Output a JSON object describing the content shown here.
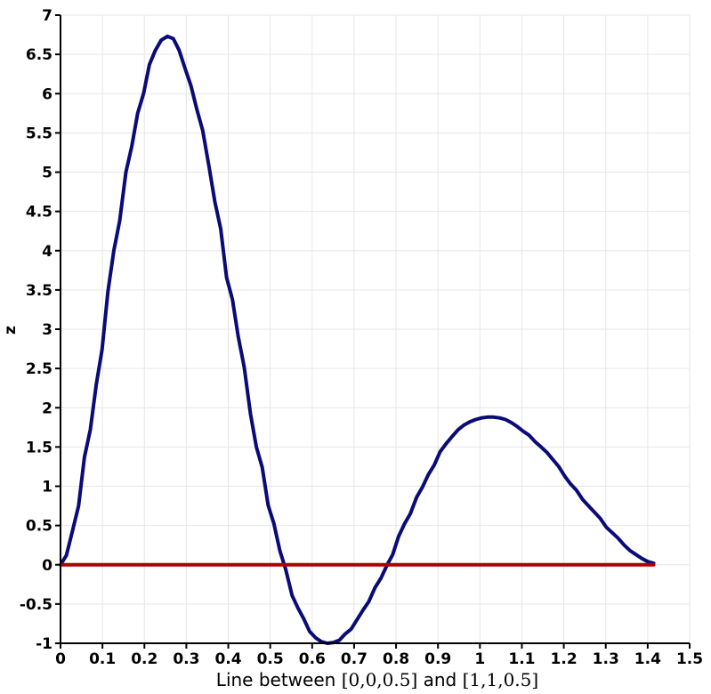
{
  "chart_data": {
    "type": "line",
    "xlabel_prefix": "Line between ",
    "xlabel_point_a": "[0,0,0.5]",
    "xlabel_middle": " and ",
    "xlabel_point_b": "[1,1,0.5]",
    "ylabel": "z",
    "xlim": [
      0,
      1.5
    ],
    "ylim": [
      -1,
      7
    ],
    "xticks": [
      0,
      0.1,
      0.2,
      0.3,
      0.4,
      0.5,
      0.6,
      0.7,
      0.8,
      0.9,
      1,
      1.1,
      1.2,
      1.3,
      1.4,
      1.5
    ],
    "xtick_labels": [
      "0",
      "0.1",
      "0.2",
      "0.3",
      "0.4",
      "0.5",
      "0.6",
      "0.7",
      "0.8",
      "0.9",
      "1",
      "1.1",
      "1.2",
      "1.3",
      "1.4",
      "1.5"
    ],
    "yticks": [
      -1,
      -0.5,
      0,
      0.5,
      1,
      1.5,
      2,
      2.5,
      3,
      3.5,
      4,
      4.5,
      5,
      5.5,
      6,
      6.5,
      7
    ],
    "ytick_labels": [
      "-1",
      "-0.5",
      "0",
      "0.5",
      "1",
      "1.5",
      "2",
      "2.5",
      "3",
      "3.5",
      "4",
      "4.5",
      "5",
      "5.5",
      "6",
      "6.5",
      "7"
    ],
    "grid": true,
    "series": [
      {
        "color": "#0a0a78",
        "x": [
          0,
          0.014,
          0.028,
          0.043,
          0.057,
          0.071,
          0.085,
          0.099,
          0.113,
          0.127,
          0.141,
          0.156,
          0.17,
          0.184,
          0.198,
          0.212,
          0.226,
          0.24,
          0.255,
          0.269,
          0.283,
          0.297,
          0.311,
          0.325,
          0.339,
          0.354,
          0.368,
          0.382,
          0.396,
          0.41,
          0.424,
          0.438,
          0.453,
          0.467,
          0.481,
          0.495,
          0.509,
          0.523,
          0.537,
          0.552,
          0.566,
          0.58,
          0.594,
          0.608,
          0.622,
          0.636,
          0.651,
          0.665,
          0.679,
          0.693,
          0.707,
          0.721,
          0.735,
          0.75,
          0.764,
          0.778,
          0.792,
          0.806,
          0.82,
          0.834,
          0.849,
          0.863,
          0.877,
          0.891,
          0.905,
          0.919,
          0.933,
          0.948,
          0.962,
          0.976,
          0.99,
          1.004,
          1.018,
          1.032,
          1.047,
          1.061,
          1.075,
          1.089,
          1.103,
          1.117,
          1.131,
          1.146,
          1.16,
          1.174,
          1.188,
          1.202,
          1.216,
          1.23,
          1.245,
          1.259,
          1.273,
          1.287,
          1.301,
          1.315,
          1.329,
          1.344,
          1.358,
          1.372,
          1.386,
          1.4,
          1.414
        ],
        "y": [
          0,
          0.12,
          0.42,
          0.75,
          1.37,
          1.72,
          2.29,
          2.74,
          3.48,
          4.0,
          4.38,
          5.0,
          5.33,
          5.75,
          6.0,
          6.37,
          6.55,
          6.68,
          6.73,
          6.7,
          6.55,
          6.32,
          6.1,
          5.8,
          5.53,
          5.07,
          4.62,
          4.28,
          3.66,
          3.38,
          2.9,
          2.52,
          1.92,
          1.5,
          1.24,
          0.76,
          0.52,
          0.18,
          -0.06,
          -0.39,
          -0.55,
          -0.69,
          -0.85,
          -0.93,
          -0.98,
          -1.0,
          -0.99,
          -0.96,
          -0.88,
          -0.82,
          -0.7,
          -0.58,
          -0.47,
          -0.29,
          -0.17,
          -0.01,
          0.13,
          0.36,
          0.52,
          0.65,
          0.86,
          0.99,
          1.15,
          1.27,
          1.44,
          1.54,
          1.63,
          1.72,
          1.78,
          1.82,
          1.85,
          1.87,
          1.88,
          1.88,
          1.87,
          1.85,
          1.81,
          1.76,
          1.7,
          1.65,
          1.57,
          1.5,
          1.43,
          1.34,
          1.25,
          1.13,
          1.03,
          0.95,
          0.83,
          0.75,
          0.67,
          0.59,
          0.48,
          0.41,
          0.34,
          0.25,
          0.18,
          0.13,
          0.08,
          0.04,
          0.02
        ]
      },
      {
        "color": "#b00000",
        "x": [
          0,
          1.414
        ],
        "y": [
          0,
          0
        ]
      }
    ]
  }
}
